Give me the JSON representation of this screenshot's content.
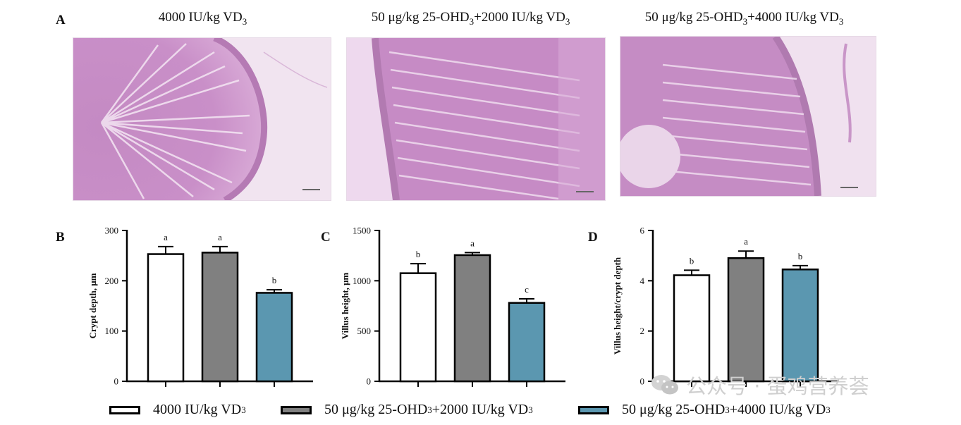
{
  "panels": {
    "A": "A",
    "B": "B",
    "C": "C",
    "D": "D"
  },
  "image_titles": [
    {
      "main": "4000 IU/kg VD",
      "sub": "3",
      "tail": ""
    },
    {
      "main": "50 μg/kg 25-OHD",
      "sub": "3",
      "tail": "+2000 IU/kg VD",
      "sub2": "3"
    },
    {
      "main": "50 μg/kg 25-OHD",
      "sub": "3",
      "tail": "+4000 IU/kg VD",
      "sub2": "3"
    }
  ],
  "colors": {
    "group1": "#ffffff",
    "group2": "#808080",
    "group3": "#5b97b0",
    "tissue": "#c98ac6"
  },
  "legend": [
    {
      "main": "4000 IU/kg VD",
      "sub": "3",
      "tail": "",
      "sub2": ""
    },
    {
      "main": "50 μg/kg 25-OHD",
      "sub": "3",
      "tail": "+2000 IU/kg VD",
      "sub2": "3"
    },
    {
      "main": "50 μg/kg 25-OHD",
      "sub": "3",
      "tail": "+4000 IU/kg VD",
      "sub2": "3"
    }
  ],
  "watermark": {
    "text": "公众号 · 蛋鸡营养荟",
    "icon": "wechat-logo-icon"
  },
  "chart_data": [
    {
      "type": "bar",
      "panel": "B",
      "ylabel": "Crypt depth, μm",
      "ylim": [
        0,
        300
      ],
      "yticks": [
        0,
        100,
        200,
        300
      ],
      "values": [
        253,
        256,
        176
      ],
      "errors": [
        15,
        12,
        6
      ],
      "letters": [
        "a",
        "a",
        "b"
      ]
    },
    {
      "type": "bar",
      "panel": "C",
      "ylabel": "Villus height, μm",
      "ylim": [
        0,
        1500
      ],
      "yticks": [
        0,
        500,
        1000,
        1500
      ],
      "values": [
        1075,
        1255,
        780
      ],
      "errors": [
        95,
        25,
        40
      ],
      "letters": [
        "b",
        "a",
        "c"
      ]
    },
    {
      "type": "bar",
      "panel": "D",
      "ylabel": "Villus height/crypt depth",
      "ylim": [
        0,
        6
      ],
      "yticks": [
        0,
        2,
        4,
        6
      ],
      "values": [
        4.22,
        4.9,
        4.45
      ],
      "errors": [
        0.2,
        0.28,
        0.15
      ],
      "letters": [
        "b",
        "a",
        "b"
      ]
    }
  ]
}
